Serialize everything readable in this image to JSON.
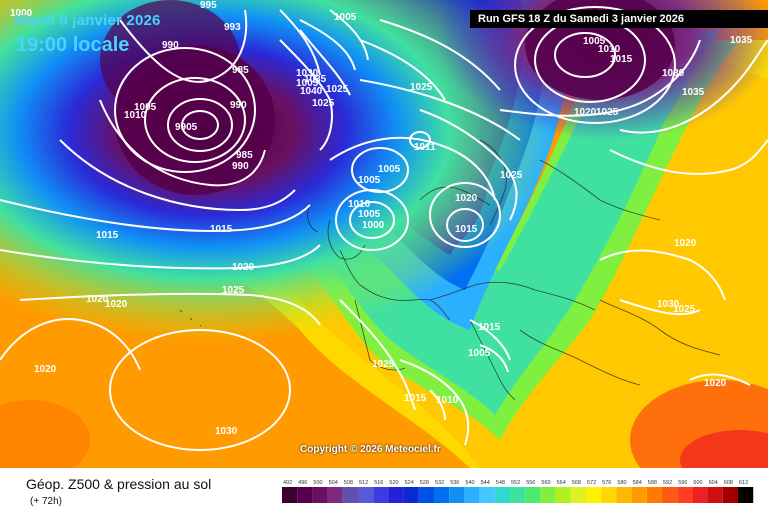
{
  "header": {
    "date": "Mardi 6 janvier 2026",
    "time": "19:00 locale",
    "run": "Run GFS 18 Z du Samedi 3 janvier 2026"
  },
  "copyright": "Copyright © 2026 Meteociel.fr",
  "footer": {
    "title": "Géop. Z500 & pression au sol",
    "forecast": "(+ 72h)"
  },
  "legend": {
    "values": [
      "492",
      "496",
      "500",
      "504",
      "508",
      "512",
      "516",
      "520",
      "524",
      "528",
      "532",
      "536",
      "540",
      "544",
      "548",
      "552",
      "556",
      "560",
      "564",
      "568",
      "572",
      "576",
      "580",
      "584",
      "588",
      "592",
      "596",
      "600",
      "604",
      "608",
      "612"
    ],
    "colors": [
      "#3b0030",
      "#55004a",
      "#6a1060",
      "#7a2a80",
      "#6050b0",
      "#5a5ad8",
      "#3c3ce0",
      "#2222d8",
      "#0a2ad0",
      "#0050e8",
      "#0070f0",
      "#1090f5",
      "#2bb0ff",
      "#40c8ff",
      "#30d8d0",
      "#40e0a0",
      "#50e870",
      "#80f040",
      "#b0f020",
      "#e0f020",
      "#fff000",
      "#ffd800",
      "#ffb800",
      "#ff9a00",
      "#ff7a00",
      "#ff5a10",
      "#ff4020",
      "#f02020",
      "#d01010",
      "#a00000",
      "#000000"
    ]
  },
  "isobar_labels": [
    "995",
    "993",
    "990",
    "985",
    "9905",
    "990",
    "985",
    "990",
    "1000",
    "1005",
    "1010",
    "1005",
    "1005",
    "1025",
    "1030",
    "1035",
    "1040",
    "1025",
    "1025",
    "1011",
    "1005",
    "1025",
    "1020",
    "1015",
    "1005",
    "1010",
    "1005",
    "1000",
    "1010",
    "1015",
    "1020",
    "1025",
    "1020",
    "1030",
    "1025",
    "1020",
    "1025",
    "1015",
    "1005",
    "1015",
    "1010",
    "1025",
    "1020",
    "1020",
    "1030",
    "1035",
    "1020",
    "1025",
    "1030",
    "1005",
    "1010",
    "1015",
    "1020",
    "1025"
  ]
}
